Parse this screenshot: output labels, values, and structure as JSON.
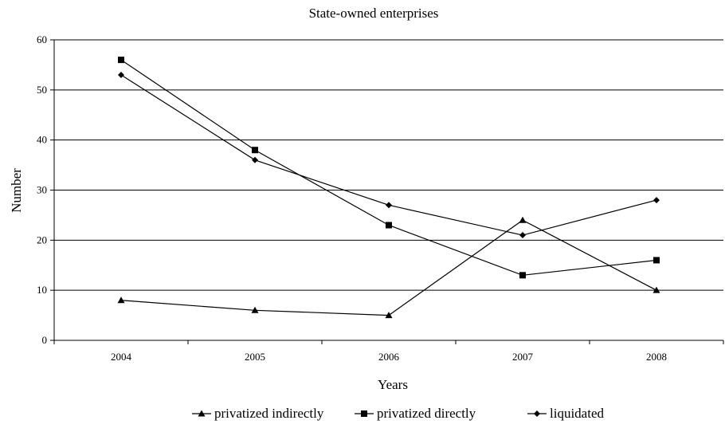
{
  "chart_data": {
    "type": "line",
    "title": "State-owned enterprises",
    "xlabel": "Years",
    "ylabel": "Number",
    "categories": [
      "2004",
      "2005",
      "2006",
      "2007",
      "2008"
    ],
    "ylim": [
      0,
      60
    ],
    "yticks": [
      "0",
      "10",
      "20",
      "30",
      "40",
      "50",
      "60"
    ],
    "grid": "horizontal",
    "legend_position": "bottom",
    "series": [
      {
        "name": "privatized indirectly",
        "marker": "triangle",
        "values": [
          8,
          6,
          5,
          24,
          10
        ]
      },
      {
        "name": "privatized directly",
        "marker": "square",
        "values": [
          56,
          38,
          23,
          13,
          16
        ]
      },
      {
        "name": "liquidated",
        "marker": "diamond",
        "values": [
          53,
          36,
          27,
          21,
          28
        ]
      }
    ],
    "colors": {
      "line": "#000000",
      "grid": "#000000",
      "background": "#ffffff"
    }
  }
}
